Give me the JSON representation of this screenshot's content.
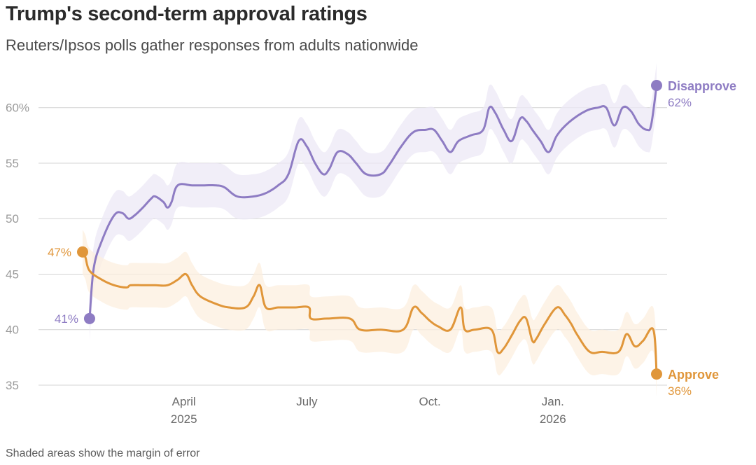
{
  "header": {
    "title": "Trump's second-term approval ratings",
    "subtitle": "Reuters/Ipsos polls gather responses from adults nationwide"
  },
  "footnote": "Shaded areas show the margin of error",
  "colors": {
    "disapprove": "#8e7cc3",
    "disapprove_band": "#ece8f6",
    "approve": "#e0963a",
    "approve_band": "#fcefdf",
    "gridline": "#d4d4d4"
  },
  "chart_data": {
    "type": "line",
    "title": "Trump's second-term approval ratings",
    "xlabel": "",
    "ylabel": "",
    "x_unit": "months since Jan 1, 2025",
    "xlim": [
      0.53,
      14.53
    ],
    "ylim": [
      35,
      62
    ],
    "y_ticks": [
      {
        "value": 60,
        "label": "60%"
      },
      {
        "value": 55,
        "label": "55"
      },
      {
        "value": 50,
        "label": "50"
      },
      {
        "value": 45,
        "label": "45"
      },
      {
        "value": 40,
        "label": "40"
      },
      {
        "value": 35,
        "label": "35"
      }
    ],
    "x_ticks": [
      {
        "value": 3,
        "label": "April",
        "sublabel": "2025"
      },
      {
        "value": 6,
        "label": "July",
        "sublabel": ""
      },
      {
        "value": 9,
        "label": "Oct.",
        "sublabel": ""
      },
      {
        "value": 12,
        "label": "Jan.",
        "sublabel": "2026"
      }
    ],
    "margin_of_error": 2,
    "series": [
      {
        "name": "Disapprove",
        "key": "disapprove",
        "end_label": "62%",
        "start_label": "41%",
        "points": [
          [
            0.7,
            41
          ],
          [
            0.8,
            45.5
          ],
          [
            1.0,
            48
          ],
          [
            1.3,
            50.3
          ],
          [
            1.5,
            50.5
          ],
          [
            1.65,
            50
          ],
          [
            1.8,
            50.3
          ],
          [
            2.0,
            51
          ],
          [
            2.2,
            51.8
          ],
          [
            2.3,
            52
          ],
          [
            2.5,
            51.5
          ],
          [
            2.6,
            51
          ],
          [
            2.7,
            51.5
          ],
          [
            2.85,
            53
          ],
          [
            3.2,
            53
          ],
          [
            3.5,
            53
          ],
          [
            3.8,
            53
          ],
          [
            4.0,
            52.8
          ],
          [
            4.3,
            52
          ],
          [
            4.7,
            52
          ],
          [
            5.0,
            52.3
          ],
          [
            5.3,
            53
          ],
          [
            5.55,
            54
          ],
          [
            5.8,
            57
          ],
          [
            6.0,
            56.5
          ],
          [
            6.2,
            55
          ],
          [
            6.4,
            54
          ],
          [
            6.55,
            54.5
          ],
          [
            6.75,
            56
          ],
          [
            7.0,
            55.8
          ],
          [
            7.2,
            55
          ],
          [
            7.45,
            54
          ],
          [
            7.8,
            54
          ],
          [
            8.0,
            54.8
          ],
          [
            8.3,
            56.5
          ],
          [
            8.6,
            57.8
          ],
          [
            8.9,
            58
          ],
          [
            9.1,
            58
          ],
          [
            9.3,
            57
          ],
          [
            9.5,
            56
          ],
          [
            9.7,
            57
          ],
          [
            10.0,
            57.5
          ],
          [
            10.3,
            58
          ],
          [
            10.45,
            60
          ],
          [
            10.6,
            59.5
          ],
          [
            10.8,
            58
          ],
          [
            11.0,
            57
          ],
          [
            11.2,
            59
          ],
          [
            11.35,
            58.8
          ],
          [
            11.5,
            58
          ],
          [
            11.7,
            57
          ],
          [
            11.9,
            56
          ],
          [
            12.1,
            57.5
          ],
          [
            12.4,
            58.7
          ],
          [
            12.8,
            59.7
          ],
          [
            13.1,
            60
          ],
          [
            13.3,
            60
          ],
          [
            13.5,
            58.4
          ],
          [
            13.7,
            60
          ],
          [
            13.9,
            59.7
          ],
          [
            14.1,
            58.5
          ],
          [
            14.3,
            58
          ],
          [
            14.4,
            58.5
          ],
          [
            14.53,
            62
          ]
        ]
      },
      {
        "name": "Approve",
        "key": "approve",
        "end_label": "36%",
        "start_label": "47%",
        "points": [
          [
            0.53,
            47
          ],
          [
            0.6,
            46.5
          ],
          [
            0.7,
            45.3
          ],
          [
            1.0,
            44.5
          ],
          [
            1.3,
            44
          ],
          [
            1.6,
            43.8
          ],
          [
            1.7,
            44
          ],
          [
            2.0,
            44
          ],
          [
            2.3,
            44
          ],
          [
            2.6,
            44
          ],
          [
            2.85,
            44.5
          ],
          [
            3.05,
            45
          ],
          [
            3.2,
            44
          ],
          [
            3.4,
            43
          ],
          [
            3.8,
            42.3
          ],
          [
            4.1,
            42
          ],
          [
            4.5,
            42
          ],
          [
            4.7,
            43
          ],
          [
            4.85,
            44
          ],
          [
            5.0,
            42
          ],
          [
            5.3,
            42
          ],
          [
            5.7,
            42
          ],
          [
            6.05,
            42
          ],
          [
            6.1,
            41
          ],
          [
            6.5,
            41
          ],
          [
            7.05,
            41
          ],
          [
            7.3,
            40
          ],
          [
            7.8,
            40
          ],
          [
            8.35,
            40
          ],
          [
            8.6,
            42
          ],
          [
            8.8,
            41.5
          ],
          [
            9.0,
            40.8
          ],
          [
            9.2,
            40.3
          ],
          [
            9.5,
            40
          ],
          [
            9.75,
            42
          ],
          [
            9.85,
            40
          ],
          [
            10.1,
            40
          ],
          [
            10.5,
            40
          ],
          [
            10.65,
            38
          ],
          [
            10.8,
            38.3
          ],
          [
            11.0,
            39.5
          ],
          [
            11.2,
            40.8
          ],
          [
            11.35,
            41
          ],
          [
            11.5,
            39
          ],
          [
            11.6,
            39.2
          ],
          [
            11.8,
            40.5
          ],
          [
            12.1,
            42
          ],
          [
            12.3,
            41.3
          ],
          [
            12.45,
            40.5
          ],
          [
            12.6,
            39.5
          ],
          [
            12.9,
            38
          ],
          [
            13.2,
            38
          ],
          [
            13.6,
            38
          ],
          [
            13.8,
            39.6
          ],
          [
            14.0,
            38.5
          ],
          [
            14.2,
            39
          ],
          [
            14.45,
            40
          ],
          [
            14.53,
            36
          ]
        ]
      }
    ]
  }
}
